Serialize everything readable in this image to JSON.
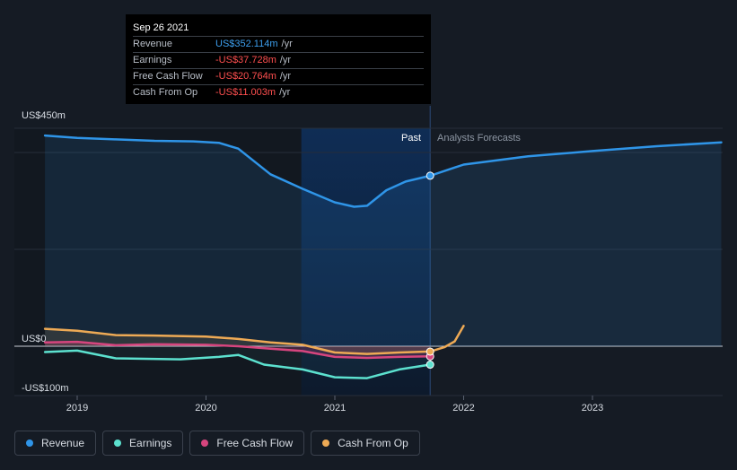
{
  "tooltip": {
    "date": "Sep 26 2021",
    "rows": [
      {
        "label": "Revenue",
        "value": "US$352.114m",
        "unit": "/yr",
        "sign": "pos"
      },
      {
        "label": "Earnings",
        "value": "-US$37.728m",
        "unit": "/yr",
        "sign": "neg"
      },
      {
        "label": "Free Cash Flow",
        "value": "-US$20.764m",
        "unit": "/yr",
        "sign": "neg"
      },
      {
        "label": "Cash From Op",
        "value": "-US$11.003m",
        "unit": "/yr",
        "sign": "neg"
      }
    ]
  },
  "labels": {
    "past": "Past",
    "forecast": "Analysts Forecasts"
  },
  "legend": [
    {
      "label": "Revenue",
      "color": "#2f95e8"
    },
    {
      "label": "Earnings",
      "color": "#5ce1cf"
    },
    {
      "label": "Free Cash Flow",
      "color": "#d6457e"
    },
    {
      "label": "Cash From Op",
      "color": "#eeaa55"
    }
  ],
  "chart_data": {
    "type": "line",
    "title": "",
    "xlabel": "",
    "ylabel": "",
    "y_ticks": [
      {
        "value": 450,
        "label": "US$450m"
      },
      {
        "value": 0,
        "label": "US$0"
      },
      {
        "value": -100,
        "label": "-US$100m"
      }
    ],
    "x_ticks": [
      {
        "value": 2019.0,
        "label": "2019"
      },
      {
        "value": 2020.0,
        "label": "2020"
      },
      {
        "value": 2021.0,
        "label": "2021"
      },
      {
        "value": 2022.0,
        "label": "2022"
      },
      {
        "value": 2023.0,
        "label": "2023"
      }
    ],
    "xlim": [
      2018.55,
      2024.0
    ],
    "ylim": [
      -100,
      450
    ],
    "past_end": 2021.74,
    "highlight_start": 2020.74,
    "grid": true,
    "series": [
      {
        "name": "Revenue",
        "color": "#2f95e8",
        "past": [
          [
            2018.75,
            435
          ],
          [
            2019.0,
            430
          ],
          [
            2019.3,
            427
          ],
          [
            2019.6,
            424
          ],
          [
            2019.9,
            423
          ],
          [
            2020.1,
            420
          ],
          [
            2020.25,
            408
          ],
          [
            2020.5,
            355
          ],
          [
            2020.75,
            325
          ],
          [
            2021.0,
            297
          ],
          [
            2021.15,
            288
          ],
          [
            2021.25,
            290
          ],
          [
            2021.4,
            322
          ],
          [
            2021.55,
            340
          ],
          [
            2021.74,
            352
          ]
        ],
        "forecast": [
          [
            2021.74,
            352
          ],
          [
            2022.0,
            375
          ],
          [
            2022.5,
            392
          ],
          [
            2023.0,
            403
          ],
          [
            2023.5,
            413
          ],
          [
            2024.0,
            421
          ]
        ]
      },
      {
        "name": "Earnings",
        "color": "#5ce1cf",
        "past": [
          [
            2018.75,
            -12
          ],
          [
            2019.0,
            -9
          ],
          [
            2019.3,
            -25
          ],
          [
            2019.8,
            -27
          ],
          [
            2020.1,
            -22
          ],
          [
            2020.25,
            -18
          ],
          [
            2020.45,
            -38
          ],
          [
            2020.75,
            -48
          ],
          [
            2021.0,
            -64
          ],
          [
            2021.25,
            -66
          ],
          [
            2021.5,
            -48
          ],
          [
            2021.74,
            -38
          ]
        ]
      },
      {
        "name": "Free Cash Flow",
        "color": "#d6457e",
        "past": [
          [
            2018.75,
            8
          ],
          [
            2019.0,
            9
          ],
          [
            2019.3,
            2
          ],
          [
            2019.6,
            4
          ],
          [
            2020.0,
            3
          ],
          [
            2020.25,
            0
          ],
          [
            2020.5,
            -5
          ],
          [
            2020.75,
            -10
          ],
          [
            2021.0,
            -22
          ],
          [
            2021.25,
            -24
          ],
          [
            2021.5,
            -22
          ],
          [
            2021.74,
            -21
          ]
        ]
      },
      {
        "name": "Cash From Op",
        "color": "#eeaa55",
        "past": [
          [
            2018.75,
            36
          ],
          [
            2019.0,
            32
          ],
          [
            2019.3,
            23
          ],
          [
            2019.6,
            22
          ],
          [
            2020.0,
            20
          ],
          [
            2020.25,
            15
          ],
          [
            2020.5,
            8
          ],
          [
            2020.75,
            3
          ],
          [
            2021.0,
            -13
          ],
          [
            2021.25,
            -16
          ],
          [
            2021.5,
            -13
          ],
          [
            2021.74,
            -11
          ]
        ],
        "forecast": [
          [
            2021.74,
            -11
          ],
          [
            2021.85,
            -2
          ],
          [
            2021.93,
            10
          ],
          [
            2022.0,
            42
          ]
        ]
      }
    ]
  }
}
